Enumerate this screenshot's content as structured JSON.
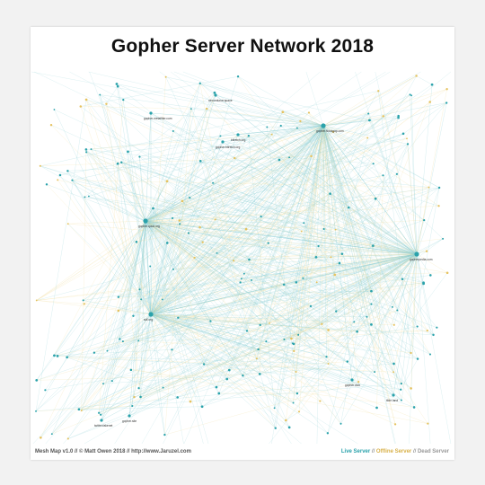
{
  "poster": {
    "title": "Gopher Server Network 2018",
    "credit": "Mesh Map v1.0 // © Matt Owen 2018 // http://www.Jaruzel.com",
    "legend": {
      "live": "Live Server",
      "offline": "Offline Server",
      "dead": "Dead Server",
      "separator": "//"
    }
  },
  "colors": {
    "live_link": "#8fd0d6",
    "offline_link": "#f2dc9c",
    "live_node": "#2aa2ab",
    "offline_node": "#e5c25f"
  },
  "nodes": [
    {
      "label": "sdf.org",
      "hub": true
    },
    {
      "label": "gopher.floodgap.com",
      "hub": true
    },
    {
      "label": "gopherpedia.com",
      "hub": true
    },
    {
      "label": "gopher.quux.org",
      "hub": true
    },
    {
      "label": "bitreich.org"
    },
    {
      "label": "gopher.metafilter.com"
    },
    {
      "label": "gopher.bitreich.org"
    },
    {
      "label": "circumlunar.space"
    },
    {
      "label": "gopher.club"
    },
    {
      "label": "tilde.land"
    },
    {
      "label": "twitter.fakenet"
    },
    {
      "label": "gopher.site"
    }
  ]
}
